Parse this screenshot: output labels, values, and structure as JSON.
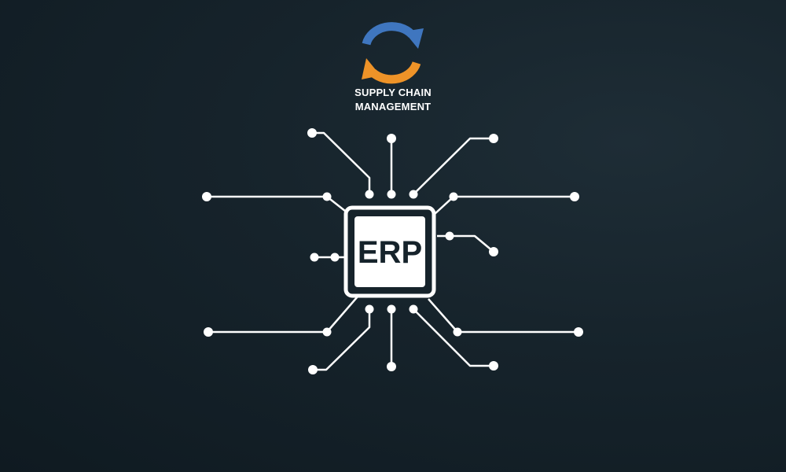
{
  "logo": {
    "line1": "SUPPLY CHAIN",
    "line2": "MANAGEMENT",
    "colors": {
      "blue_arrow": "#3f76bf",
      "orange_arrow": "#ee9328"
    }
  },
  "chip": {
    "label": "ERP"
  },
  "colors": {
    "background": "#16232b",
    "circuit": "#ffffff"
  }
}
